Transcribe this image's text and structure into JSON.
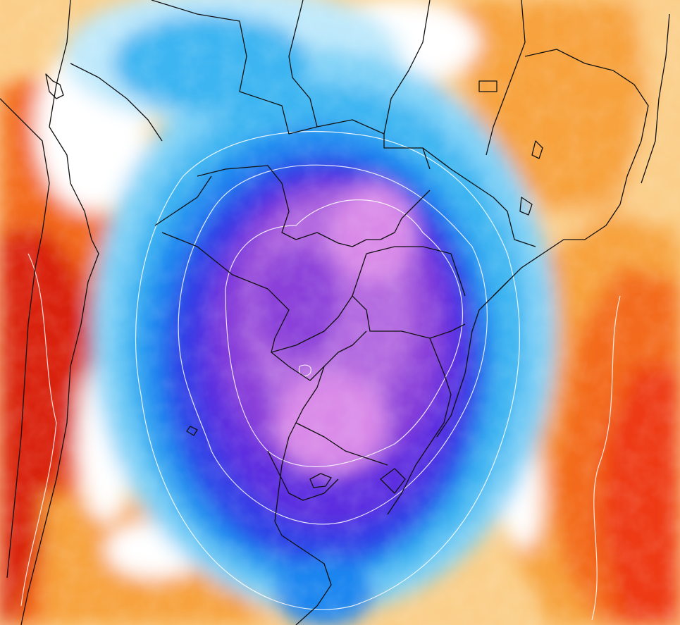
{
  "map": {
    "kind": "temperature-anomaly-map",
    "palette": {
      "deep_red": "#d9200f",
      "red": "#ee3a12",
      "orange_red": "#f36a1c",
      "orange": "#f7a23c",
      "light_orange": "#fbcf8a",
      "cream": "#fde9cc",
      "white": "#ffffff",
      "pale_cyan": "#bfe9fb",
      "light_blue": "#7fd2f7",
      "sky_blue": "#3cb5f1",
      "blue": "#1f86f0",
      "royal_blue": "#2f3fe6",
      "indigo": "#5b2fe0",
      "violet": "#8a3fd9",
      "purple": "#b36ae0",
      "pink_purple": "#d98ae8"
    },
    "borders": {
      "color": "#111111"
    },
    "contours": {
      "color": "#ffffff"
    }
  }
}
